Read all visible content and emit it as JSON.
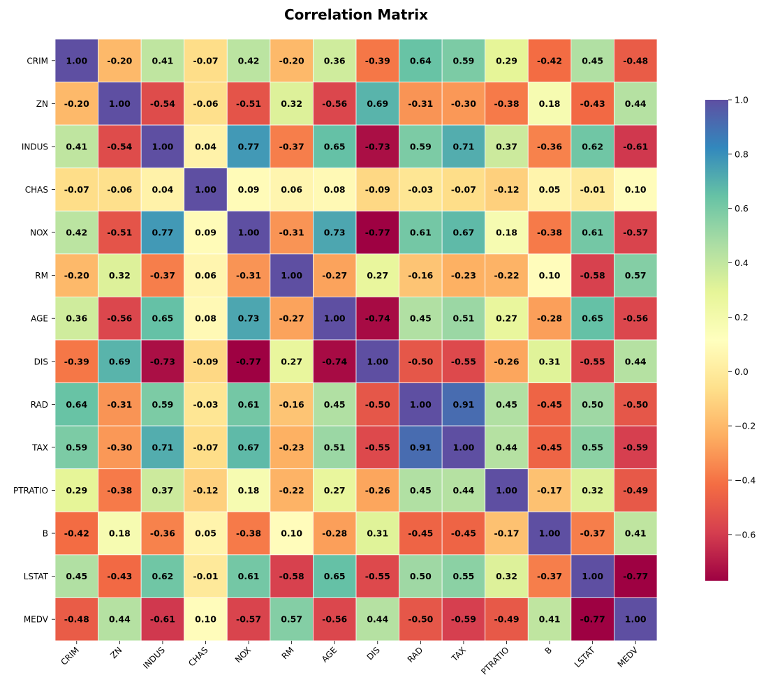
{
  "chart_data": {
    "type": "heatmap",
    "title": "Correlation Matrix",
    "xlabel": "",
    "ylabel": "",
    "variables": [
      "CRIM",
      "ZN",
      "INDUS",
      "CHAS",
      "NOX",
      "RM",
      "AGE",
      "DIS",
      "RAD",
      "TAX",
      "PTRATIO",
      "B",
      "LSTAT",
      "MEDV"
    ],
    "matrix": [
      [
        1.0,
        -0.2,
        0.41,
        -0.07,
        0.42,
        -0.2,
        0.36,
        -0.39,
        0.64,
        0.59,
        0.29,
        -0.42,
        0.45,
        -0.48
      ],
      [
        -0.2,
        1.0,
        -0.54,
        -0.06,
        -0.51,
        0.32,
        -0.56,
        0.69,
        -0.31,
        -0.3,
        -0.38,
        0.18,
        -0.43,
        0.44
      ],
      [
        0.41,
        -0.54,
        1.0,
        0.04,
        0.77,
        -0.37,
        0.65,
        -0.73,
        0.59,
        0.71,
        0.37,
        -0.36,
        0.62,
        -0.61
      ],
      [
        -0.07,
        -0.06,
        0.04,
        1.0,
        0.09,
        0.06,
        0.08,
        -0.09,
        -0.03,
        -0.07,
        -0.12,
        0.05,
        -0.01,
        0.1
      ],
      [
        0.42,
        -0.51,
        0.77,
        0.09,
        1.0,
        -0.31,
        0.73,
        -0.77,
        0.61,
        0.67,
        0.18,
        -0.38,
        0.61,
        -0.57
      ],
      [
        -0.2,
        0.32,
        -0.37,
        0.06,
        -0.31,
        1.0,
        -0.27,
        0.27,
        -0.16,
        -0.23,
        -0.22,
        0.1,
        -0.58,
        0.57
      ],
      [
        0.36,
        -0.56,
        0.65,
        0.08,
        0.73,
        -0.27,
        1.0,
        -0.74,
        0.45,
        0.51,
        0.27,
        -0.28,
        0.65,
        -0.56
      ],
      [
        -0.39,
        0.69,
        -0.73,
        -0.09,
        -0.77,
        0.27,
        -0.74,
        1.0,
        -0.5,
        -0.55,
        -0.26,
        0.31,
        -0.55,
        0.44
      ],
      [
        0.64,
        -0.31,
        0.59,
        -0.03,
        0.61,
        -0.16,
        0.45,
        -0.5,
        1.0,
        0.91,
        0.45,
        -0.45,
        0.5,
        -0.5
      ],
      [
        0.59,
        -0.3,
        0.71,
        -0.07,
        0.67,
        -0.23,
        0.51,
        -0.55,
        0.91,
        1.0,
        0.44,
        -0.45,
        0.55,
        -0.59
      ],
      [
        0.29,
        -0.38,
        0.37,
        -0.12,
        0.18,
        -0.22,
        0.27,
        -0.26,
        0.45,
        0.44,
        1.0,
        -0.17,
        0.32,
        -0.49
      ],
      [
        -0.42,
        0.18,
        -0.36,
        0.05,
        -0.38,
        0.1,
        -0.28,
        0.31,
        -0.45,
        -0.45,
        -0.17,
        1.0,
        -0.37,
        0.41
      ],
      [
        0.45,
        -0.43,
        0.62,
        -0.01,
        0.61,
        -0.58,
        0.65,
        -0.55,
        0.5,
        0.55,
        0.32,
        -0.37,
        1.0,
        -0.77
      ],
      [
        -0.48,
        0.44,
        -0.61,
        0.1,
        -0.57,
        0.57,
        -0.56,
        0.44,
        -0.5,
        -0.59,
        -0.49,
        0.41,
        -0.77,
        1.0
      ]
    ],
    "colormap": "Spectral",
    "color_range": [
      -0.77,
      1.0
    ],
    "colorbar_ticks": [
      "1.0",
      "0.8",
      "0.6",
      "0.4",
      "0.2",
      "0.0",
      "−0.2",
      "−0.4",
      "−0.6"
    ],
    "colorbar_tick_values": [
      1.0,
      0.8,
      0.6,
      0.4,
      0.2,
      0.0,
      -0.2,
      -0.4,
      -0.6
    ],
    "annotations": "values shown in each cell, 2 decimals, bold",
    "grid": true
  }
}
